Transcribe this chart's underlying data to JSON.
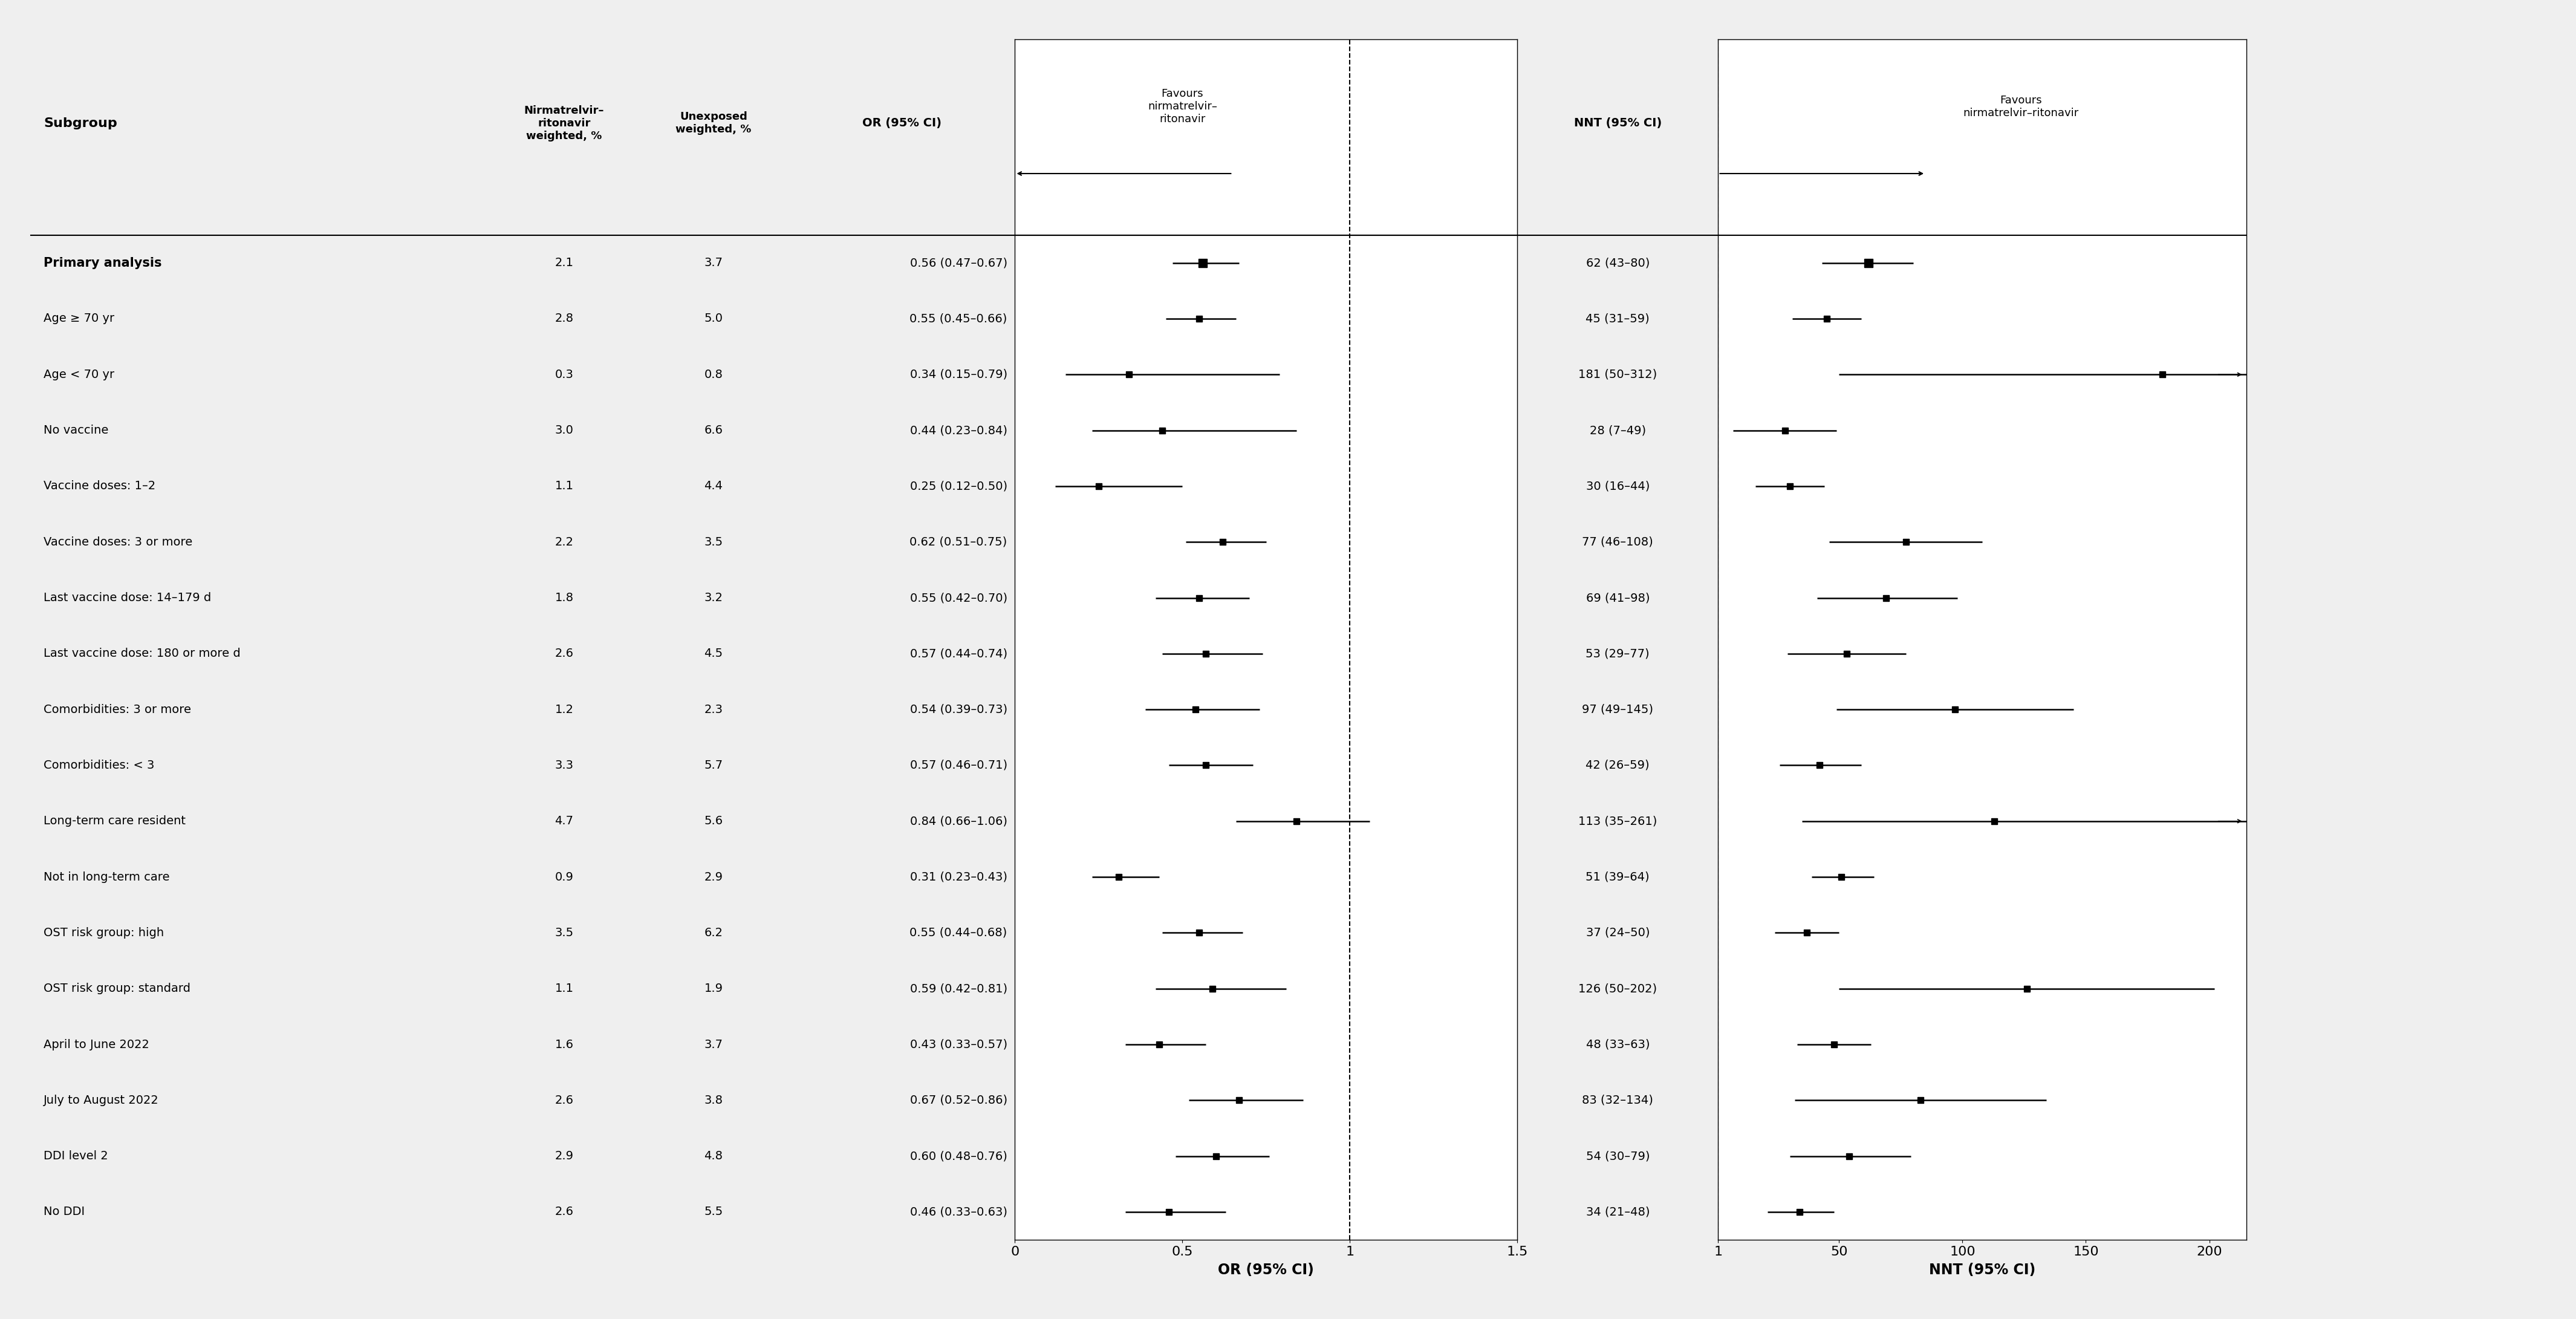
{
  "subgroups": [
    "Primary analysis",
    "Age ≥ 70 yr",
    "Age < 70 yr",
    "No vaccine",
    "Vaccine doses: 1–2",
    "Vaccine doses: 3 or more",
    "Last vaccine dose: 14–179 d",
    "Last vaccine dose: 180 or more d",
    "Comorbidities: 3 or more",
    "Comorbidities: < 3",
    "Long-term care resident",
    "Not in long-term care",
    "OST risk group: high",
    "OST risk group: standard",
    "April to June 2022",
    "July to August 2022",
    "DDI level 2",
    "No DDI"
  ],
  "nirmatrelvir_pct": [
    2.1,
    2.8,
    0.3,
    3.0,
    1.1,
    2.2,
    1.8,
    2.6,
    1.2,
    3.3,
    4.7,
    0.9,
    3.5,
    1.1,
    1.6,
    2.6,
    2.9,
    2.6
  ],
  "unexposed_pct": [
    3.7,
    5.0,
    0.8,
    6.6,
    4.4,
    3.5,
    3.2,
    4.5,
    2.3,
    5.7,
    5.6,
    2.9,
    6.2,
    1.9,
    3.7,
    3.8,
    4.8,
    5.5
  ],
  "or_values": [
    0.56,
    0.55,
    0.34,
    0.44,
    0.25,
    0.62,
    0.55,
    0.57,
    0.54,
    0.57,
    0.84,
    0.31,
    0.55,
    0.59,
    0.43,
    0.67,
    0.6,
    0.46
  ],
  "or_lower": [
    0.47,
    0.45,
    0.15,
    0.23,
    0.12,
    0.51,
    0.42,
    0.44,
    0.39,
    0.46,
    0.66,
    0.23,
    0.44,
    0.42,
    0.33,
    0.52,
    0.48,
    0.33
  ],
  "or_upper": [
    0.67,
    0.66,
    0.79,
    0.84,
    0.5,
    0.75,
    0.7,
    0.74,
    0.73,
    0.71,
    1.06,
    0.43,
    0.68,
    0.81,
    0.57,
    0.86,
    0.76,
    0.63
  ],
  "or_text": [
    "0.56 (0.47–0.67)",
    "0.55 (0.45–0.66)",
    "0.34 (0.15–0.79)",
    "0.44 (0.23–0.84)",
    "0.25 (0.12–0.50)",
    "0.62 (0.51–0.75)",
    "0.55 (0.42–0.70)",
    "0.57 (0.44–0.74)",
    "0.54 (0.39–0.73)",
    "0.57 (0.46–0.71)",
    "0.84 (0.66–1.06)",
    "0.31 (0.23–0.43)",
    "0.55 (0.44–0.68)",
    "0.59 (0.42–0.81)",
    "0.43 (0.33–0.57)",
    "0.67 (0.52–0.86)",
    "0.60 (0.48–0.76)",
    "0.46 (0.33–0.63)"
  ],
  "nnt_values": [
    62,
    45,
    181,
    28,
    30,
    77,
    69,
    53,
    97,
    42,
    113,
    51,
    37,
    126,
    48,
    83,
    54,
    34
  ],
  "nnt_lower": [
    43,
    31,
    50,
    7,
    16,
    46,
    41,
    29,
    49,
    26,
    35,
    39,
    24,
    50,
    33,
    32,
    30,
    21
  ],
  "nnt_upper": [
    80,
    59,
    312,
    49,
    44,
    108,
    98,
    77,
    145,
    59,
    261,
    64,
    50,
    202,
    63,
    134,
    79,
    48
  ],
  "nnt_text": [
    "62 (43–80)",
    "45 (31–59)",
    "181 (50–312)",
    "28 (7–49)",
    "30 (16–44)",
    "77 (46–108)",
    "69 (41–98)",
    "53 (29–77)",
    "97 (49–145)",
    "42 (26–59)",
    "113 (35–261)",
    "51 (39–64)",
    "37 (24–50)",
    "126 (50–202)",
    "48 (33–63)",
    "83 (32–134)",
    "54 (30–79)",
    "34 (21–48)"
  ],
  "primary_bold": [
    true,
    false,
    false,
    false,
    false,
    false,
    false,
    false,
    false,
    false,
    false,
    false,
    false,
    false,
    false,
    false,
    false,
    false
  ],
  "bg_color": "#efefef",
  "plot_bg_color": "#ffffff",
  "or_xlim": [
    0,
    1.5
  ],
  "or_xticks": [
    0,
    0.5,
    1.0,
    1.5
  ],
  "or_xtick_labels": [
    "0",
    "0.5",
    "1",
    "1.5"
  ],
  "nnt_xlim": [
    1,
    215
  ],
  "nnt_xticks": [
    1,
    50,
    100,
    150,
    200
  ],
  "nnt_xtick_labels": [
    "1",
    "50",
    "100",
    "150",
    "200"
  ]
}
